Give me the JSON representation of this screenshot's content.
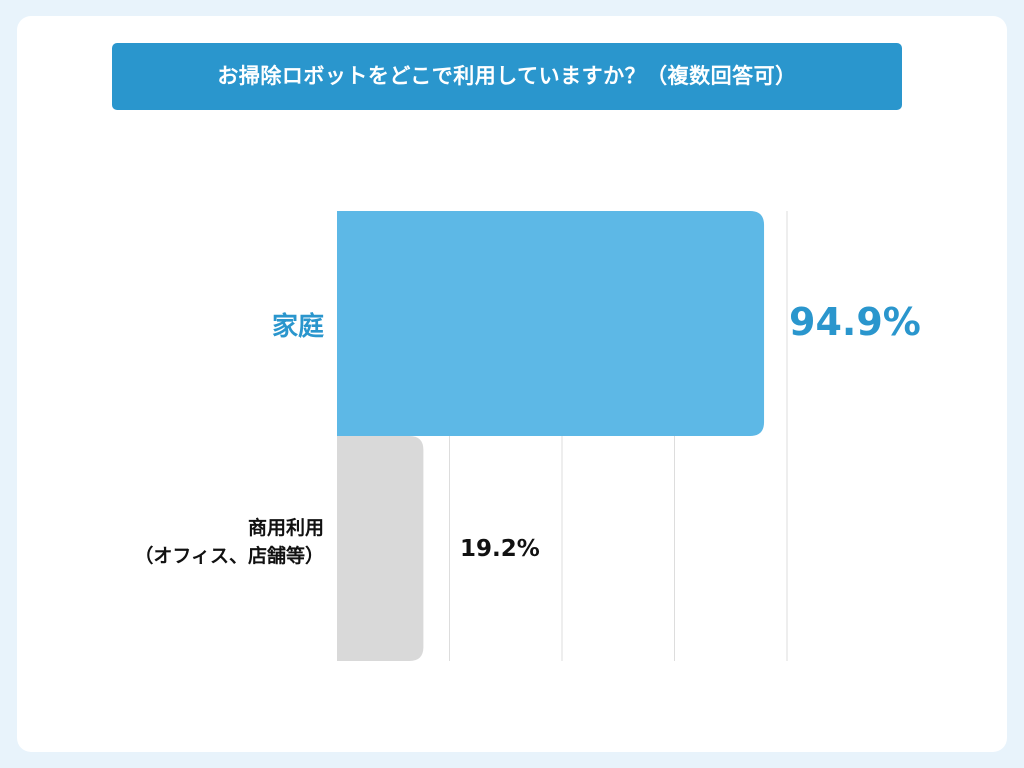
{
  "title": "お掃除ロボットをどこで利用していますか？（複数回答可）",
  "colors": {
    "background": "#e8f3fb",
    "card": "#ffffff",
    "title_bar": "#2a96cd",
    "highlight_bar": "#5db8e6",
    "muted_bar": "#d9d9d9",
    "highlight_text": "#2a96cd",
    "text": "#111111",
    "grid": "#dddddd"
  },
  "chart_data": {
    "type": "bar",
    "orientation": "horizontal",
    "title": "お掃除ロボットをどこで利用していますか？（複数回答可）",
    "categories": [
      "家庭",
      "商用利用\n（オフィス、店舗等）"
    ],
    "values": [
      94.9,
      19.2
    ],
    "value_labels": [
      "94.9%",
      "19.2%"
    ],
    "unit": "%",
    "xlim": [
      0,
      100
    ],
    "grid": true,
    "legend": "none"
  }
}
